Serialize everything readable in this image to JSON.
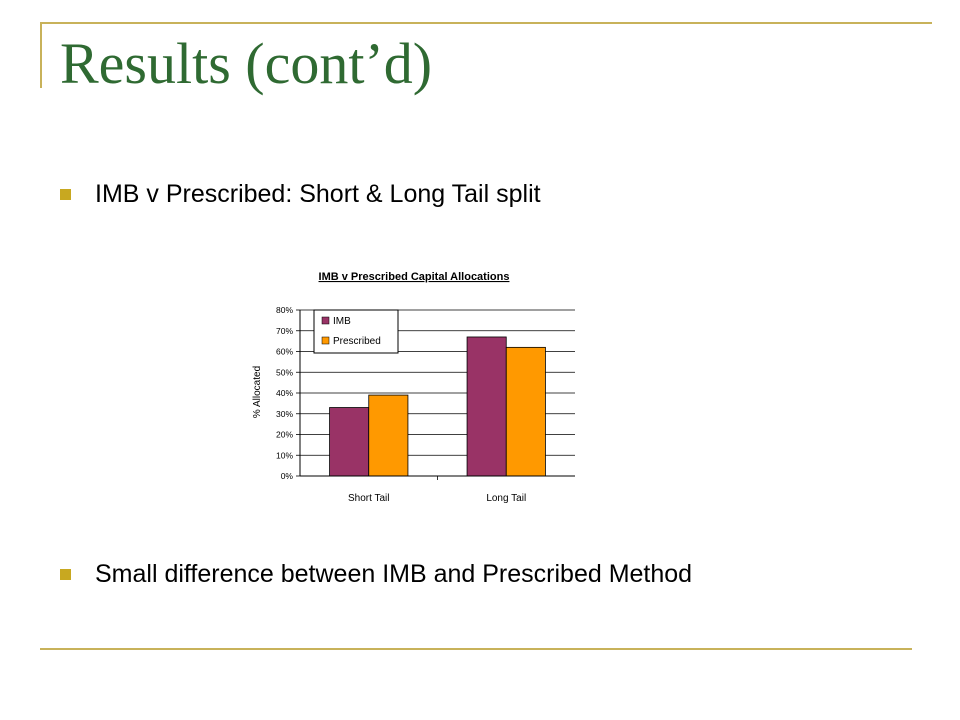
{
  "slide": {
    "title": "Results (cont’d)",
    "bullets": [
      "IMB v Prescribed: Short & Long Tail split",
      "Small difference between IMB and Prescribed Method"
    ]
  },
  "colors": {
    "accent_rule": "#c8b25a",
    "title": "#2f6a32",
    "bullet": "#c8a820"
  },
  "chart_data": {
    "type": "bar",
    "title": "IMB v Prescribed Capital Allocations",
    "ylabel": "% Allocated",
    "xlabel": "",
    "categories": [
      "Short Tail",
      "Long Tail"
    ],
    "series": [
      {
        "name": "IMB",
        "values": [
          33,
          67
        ],
        "color": "#993366"
      },
      {
        "name": "Prescribed",
        "values": [
          39,
          62
        ],
        "color": "#ff9900"
      }
    ],
    "ylim": [
      0,
      80
    ],
    "yticks": [
      "0%",
      "10%",
      "20%",
      "30%",
      "40%",
      "50%",
      "60%",
      "70%",
      "80%"
    ],
    "grid": true,
    "legend": "top-left inside plot"
  }
}
